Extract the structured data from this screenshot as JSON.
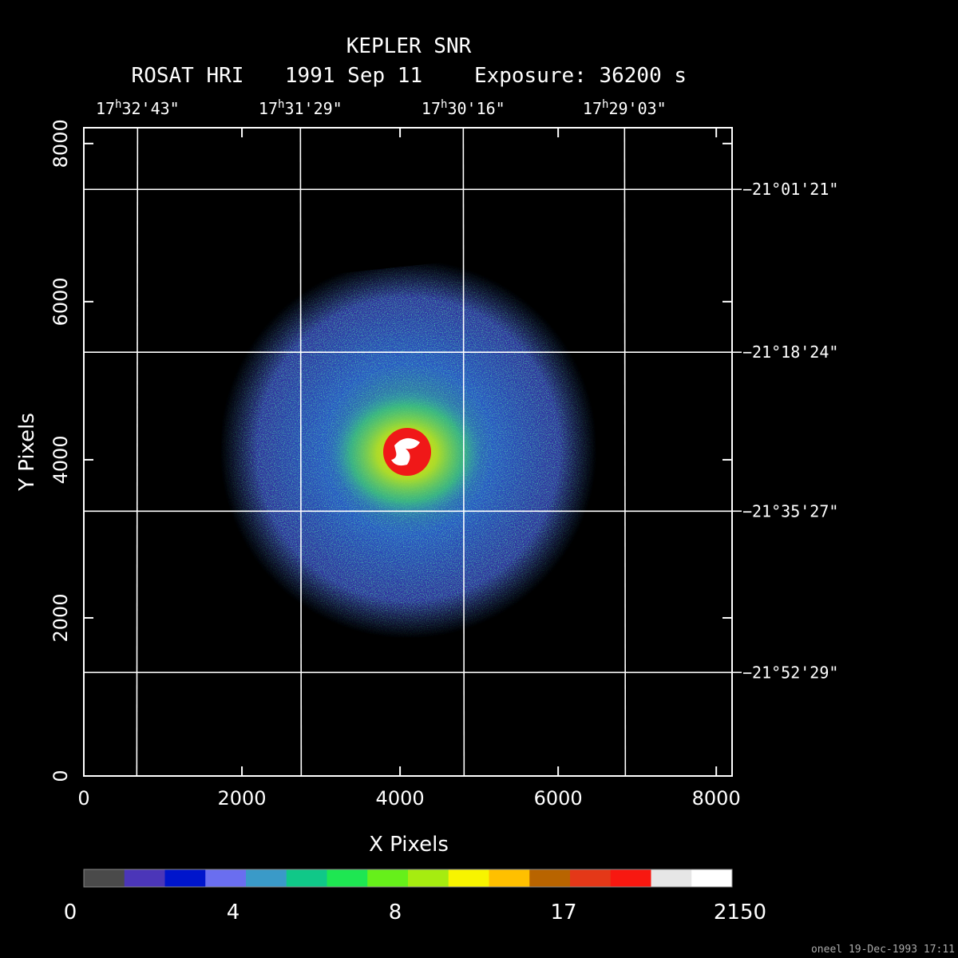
{
  "header": {
    "title": "KEPLER SNR",
    "instrument": "ROSAT HRI",
    "date": "1991 Sep 11",
    "exposure": "Exposure: 36200 s"
  },
  "axes": {
    "xlabel": "X Pixels",
    "ylabel": "Y Pixels",
    "xlim": [
      0,
      8200
    ],
    "ylim": [
      0,
      8200
    ],
    "x_ticks": [
      "0",
      "2000",
      "4000",
      "6000",
      "8000"
    ],
    "y_ticks": [
      "0",
      "2000",
      "4000",
      "6000",
      "8000"
    ],
    "ra_labels": [
      {
        "h": "17",
        "ms": "32'43\""
      },
      {
        "h": "17",
        "ms": "31'29\""
      },
      {
        "h": "17",
        "ms": "30'16\""
      },
      {
        "h": "17",
        "ms": "29'03\""
      }
    ],
    "dec_labels": [
      "−21°01'21\"",
      "−21°18'24\"",
      "−21°35'27\"",
      "−21°52'29\""
    ],
    "ra_grid_x": [
      680,
      2740,
      4800,
      6840
    ],
    "dec_grid_y": [
      7420,
      5360,
      3350,
      1310
    ]
  },
  "colorbar": {
    "colors": [
      "#4a4a4a",
      "#4b36b8",
      "#0015cc",
      "#6a6ef0",
      "#3a9ac8",
      "#10c888",
      "#1ee652",
      "#66f01a",
      "#a6ec10",
      "#f8f400",
      "#ffc000",
      "#b86400",
      "#e43818",
      "#f81810",
      "#e6e6e6",
      "#ffffff"
    ],
    "tick_labels": [
      "0",
      "4",
      "8",
      "17",
      "2150"
    ]
  },
  "footer": {
    "credit": "oneel 19-Dec-1993 17:11"
  }
}
